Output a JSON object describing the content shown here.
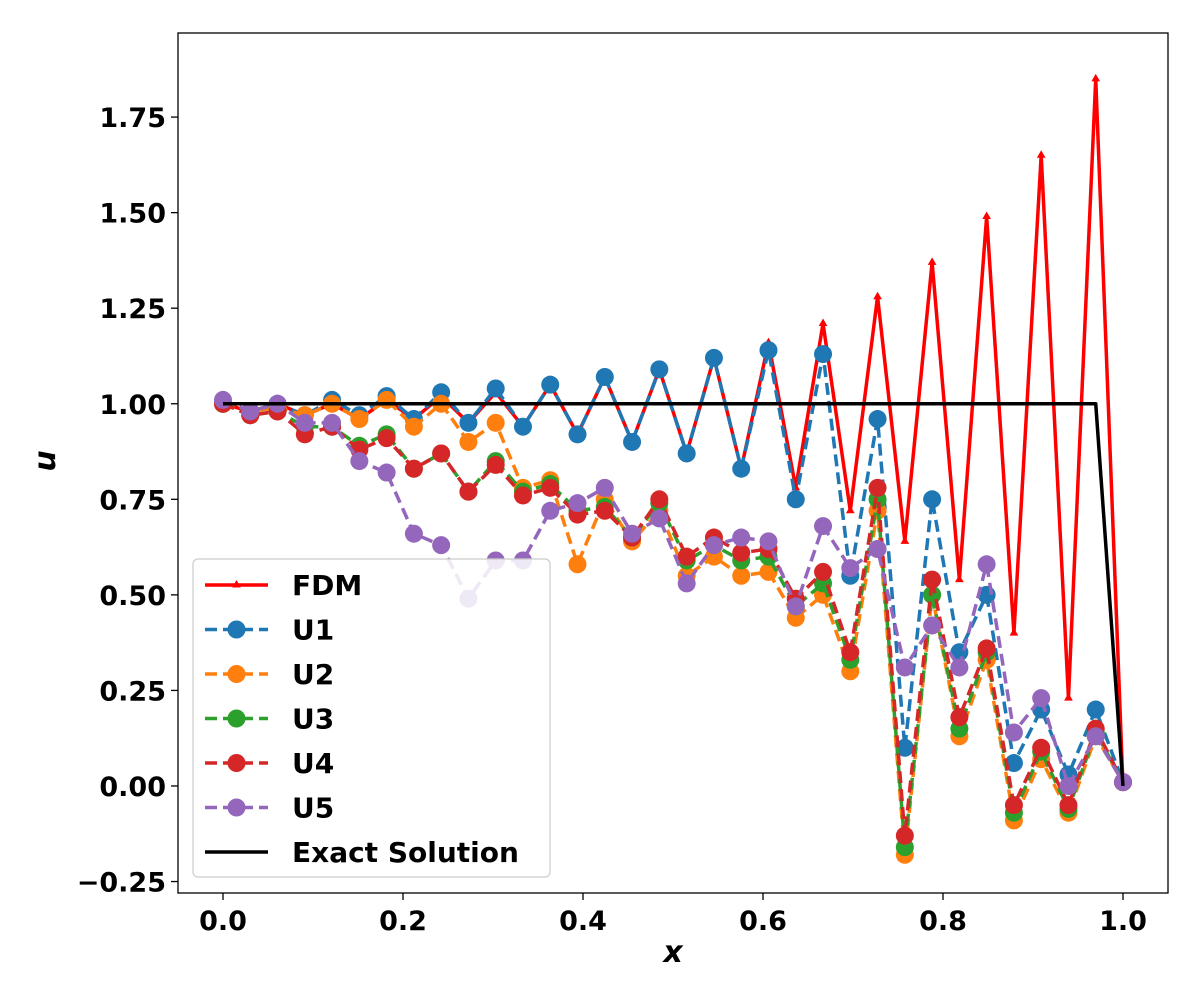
{
  "chart_data": {
    "type": "line",
    "title": "",
    "xlabel": "x",
    "ylabel": "u",
    "xlim": [
      -0.05,
      1.05
    ],
    "ylim": [
      -0.28,
      1.97
    ],
    "xticks": [
      0.0,
      0.2,
      0.4,
      0.6,
      0.8,
      1.0
    ],
    "xtick_labels": [
      "0.0",
      "0.2",
      "0.4",
      "0.6",
      "0.8",
      "1.0"
    ],
    "yticks": [
      -0.25,
      0.0,
      0.25,
      0.5,
      0.75,
      1.0,
      1.25,
      1.5,
      1.75
    ],
    "ytick_labels": [
      "−0.25",
      "0.00",
      "0.25",
      "0.50",
      "0.75",
      "1.00",
      "1.25",
      "1.50",
      "1.75"
    ],
    "grid": false,
    "legend_position": "lower-left",
    "x": [
      0.0,
      0.0303,
      0.0606,
      0.0909,
      0.1212,
      0.1515,
      0.1818,
      0.2121,
      0.2424,
      0.2727,
      0.303,
      0.3333,
      0.3636,
      0.3939,
      0.4242,
      0.4545,
      0.4848,
      0.5152,
      0.5455,
      0.5758,
      0.6061,
      0.6364,
      0.6667,
      0.697,
      0.7273,
      0.7576,
      0.7879,
      0.8182,
      0.8485,
      0.8788,
      0.9091,
      0.9394,
      0.9697,
      1.0
    ],
    "series": [
      {
        "name": "FDM",
        "color": "#ff0000",
        "style": "solid",
        "marker": "triangle",
        "values": [
          1.0,
          0.98,
          1.0,
          0.97,
          1.0,
          0.96,
          1.01,
          0.96,
          1.02,
          0.95,
          1.03,
          0.94,
          1.05,
          0.92,
          1.07,
          0.9,
          1.09,
          0.87,
          1.12,
          0.83,
          1.16,
          0.78,
          1.21,
          0.72,
          1.28,
          0.64,
          1.37,
          0.54,
          1.49,
          0.4,
          1.65,
          0.23,
          1.85,
          0.0
        ]
      },
      {
        "name": "U1",
        "color": "#1f77b4",
        "style": "dashed",
        "marker": "circle",
        "values": [
          1.0,
          0.98,
          1.0,
          0.97,
          1.01,
          0.97,
          1.02,
          0.96,
          1.03,
          0.95,
          1.04,
          0.94,
          1.05,
          0.92,
          1.07,
          0.9,
          1.09,
          0.87,
          1.12,
          0.83,
          1.14,
          0.75,
          1.13,
          0.55,
          0.96,
          0.1,
          0.75,
          0.35,
          0.5,
          0.06,
          0.2,
          0.03,
          0.2,
          0.01
        ]
      },
      {
        "name": "U2",
        "color": "#ff7f0e",
        "style": "dashed",
        "marker": "circle",
        "values": [
          1.0,
          0.98,
          0.99,
          0.97,
          1.0,
          0.96,
          1.01,
          0.94,
          1.0,
          0.9,
          0.95,
          0.78,
          0.8,
          0.58,
          0.75,
          0.64,
          0.72,
          0.55,
          0.6,
          0.55,
          0.56,
          0.44,
          0.5,
          0.3,
          0.72,
          -0.18,
          0.5,
          0.13,
          0.33,
          -0.09,
          0.07,
          -0.07,
          0.13,
          0.01
        ]
      },
      {
        "name": "U3",
        "color": "#2ca02c",
        "style": "dashed",
        "marker": "circle",
        "values": [
          1.0,
          0.97,
          0.98,
          0.94,
          0.94,
          0.89,
          0.92,
          0.83,
          0.87,
          0.77,
          0.85,
          0.77,
          0.79,
          0.72,
          0.73,
          0.65,
          0.74,
          0.59,
          0.63,
          0.59,
          0.6,
          0.47,
          0.53,
          0.33,
          0.75,
          -0.16,
          0.5,
          0.15,
          0.35,
          -0.07,
          0.09,
          -0.06,
          0.14,
          0.01
        ]
      },
      {
        "name": "U4",
        "color": "#d62728",
        "style": "dashed",
        "marker": "circle",
        "values": [
          1.0,
          0.97,
          0.98,
          0.92,
          0.94,
          0.88,
          0.91,
          0.83,
          0.87,
          0.77,
          0.84,
          0.76,
          0.78,
          0.71,
          0.72,
          0.65,
          0.75,
          0.6,
          0.65,
          0.61,
          0.62,
          0.49,
          0.56,
          0.35,
          0.78,
          -0.13,
          0.54,
          0.18,
          0.36,
          -0.05,
          0.1,
          -0.05,
          0.15,
          0.01
        ]
      },
      {
        "name": "U5",
        "color": "#9467bd",
        "style": "dashed",
        "marker": "circle",
        "values": [
          1.01,
          0.98,
          1.0,
          0.95,
          0.95,
          0.85,
          0.82,
          0.66,
          0.63,
          0.49,
          0.59,
          0.59,
          0.72,
          0.74,
          0.78,
          0.66,
          0.7,
          0.53,
          0.63,
          0.65,
          0.64,
          0.47,
          0.68,
          0.57,
          0.62,
          0.31,
          0.42,
          0.31,
          0.58,
          0.14,
          0.23,
          0.0,
          0.13,
          0.01
        ]
      },
      {
        "name": "Exact Solution",
        "color": "#000000",
        "style": "solid",
        "marker": "none",
        "x": [
          0.0,
          0.9697,
          1.0
        ],
        "values": [
          1.0,
          1.0,
          0.0
        ]
      }
    ]
  }
}
